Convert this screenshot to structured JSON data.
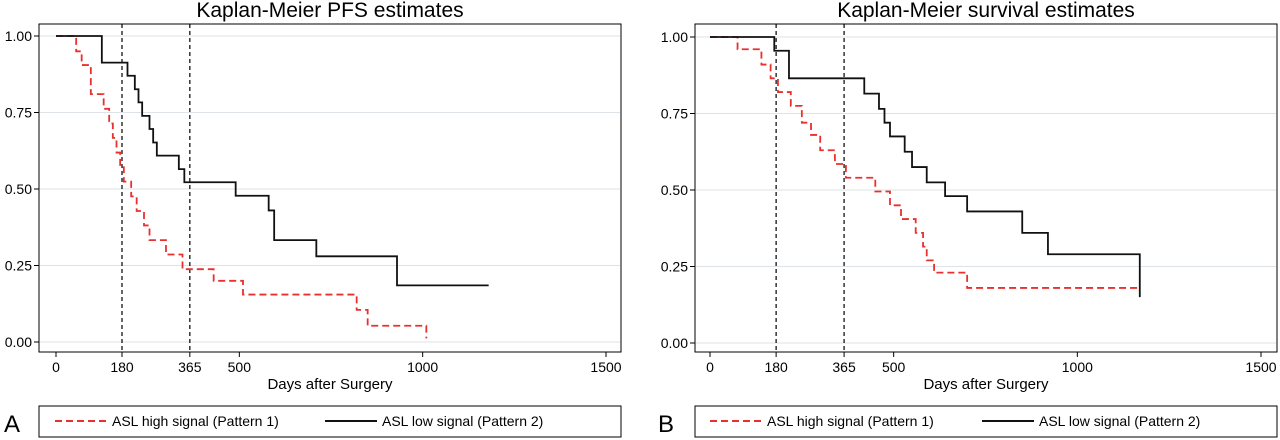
{
  "chart_data": [
    {
      "panel": "A",
      "type": "line",
      "title": "Kaplan-Meier PFS estimates",
      "xlabel": "Days after Surgery",
      "ylabel": "",
      "xlim": [
        0,
        1500
      ],
      "ylim": [
        0,
        1
      ],
      "xticks": [
        0,
        180,
        365,
        500,
        1000,
        1500
      ],
      "yticks": [
        0.0,
        0.25,
        0.5,
        0.75,
        1.0
      ],
      "ytick_labels": [
        "0.00",
        "0.25",
        "0.50",
        "0.75",
        "1.00"
      ],
      "reference_lines_x": [
        180,
        365
      ],
      "grid": true,
      "legend_position": "bottom",
      "series": [
        {
          "name": "ASL high signal (Pattern 1)",
          "color": "#e8312f",
          "style": "dashed",
          "x": [
            0,
            40,
            55,
            70,
            95,
            130,
            145,
            155,
            165,
            175,
            185,
            205,
            220,
            240,
            255,
            275,
            300,
            330,
            345,
            355,
            430,
            510,
            800,
            820,
            850,
            1010,
            1010
          ],
          "y": [
            1.0,
            1.0,
            0.95,
            0.905,
            0.81,
            0.762,
            0.714,
            0.667,
            0.619,
            0.571,
            0.524,
            0.476,
            0.428,
            0.381,
            0.333,
            0.333,
            0.286,
            0.286,
            0.238,
            0.238,
            0.2,
            0.155,
            0.155,
            0.105,
            0.053,
            0.053,
            0.012
          ]
        },
        {
          "name": "ASL low signal (Pattern 2)",
          "color": "#111111",
          "style": "solid",
          "x": [
            0,
            110,
            125,
            195,
            215,
            225,
            235,
            255,
            265,
            275,
            335,
            350,
            365,
            490,
            530,
            580,
            595,
            710,
            930,
            1180
          ],
          "y": [
            1.0,
            1.0,
            0.913,
            0.87,
            0.826,
            0.783,
            0.739,
            0.696,
            0.652,
            0.609,
            0.565,
            0.522,
            0.522,
            0.478,
            0.478,
            0.43,
            0.333,
            0.28,
            0.185,
            0.185
          ]
        }
      ]
    },
    {
      "panel": "B",
      "type": "line",
      "title": "Kaplan-Meier survival estimates",
      "xlabel": "Days after Surgery",
      "ylabel": "",
      "xlim": [
        0,
        1500
      ],
      "ylim": [
        0,
        1
      ],
      "xticks": [
        0,
        180,
        365,
        500,
        1000,
        1500
      ],
      "yticks": [
        0.0,
        0.25,
        0.5,
        0.75,
        1.0
      ],
      "ytick_labels": [
        "0.00",
        "0.25",
        "0.50",
        "0.75",
        "1.00"
      ],
      "reference_lines_x": [
        180,
        365
      ],
      "grid": true,
      "legend_position": "bottom",
      "series": [
        {
          "name": "ASL high signal (Pattern 1)",
          "color": "#e8312f",
          "style": "dashed",
          "x": [
            0,
            35,
            75,
            140,
            165,
            185,
            220,
            250,
            275,
            300,
            340,
            370,
            400,
            450,
            490,
            520,
            560,
            580,
            590,
            600,
            610,
            630,
            700,
            1170
          ],
          "y": [
            1.0,
            1.0,
            0.96,
            0.91,
            0.865,
            0.82,
            0.775,
            0.72,
            0.68,
            0.63,
            0.585,
            0.54,
            0.54,
            0.495,
            0.45,
            0.405,
            0.36,
            0.315,
            0.27,
            0.27,
            0.23,
            0.23,
            0.18,
            0.18
          ]
        },
        {
          "name": "ASL low signal (Pattern 2)",
          "color": "#111111",
          "style": "solid",
          "x": [
            0,
            100,
            175,
            215,
            380,
            420,
            460,
            475,
            490,
            520,
            530,
            550,
            590,
            640,
            700,
            850,
            920,
            1170,
            1170
          ],
          "y": [
            1.0,
            1.0,
            0.955,
            0.865,
            0.865,
            0.815,
            0.765,
            0.72,
            0.675,
            0.675,
            0.625,
            0.575,
            0.525,
            0.48,
            0.43,
            0.36,
            0.29,
            0.29,
            0.15
          ]
        }
      ]
    }
  ]
}
